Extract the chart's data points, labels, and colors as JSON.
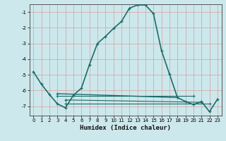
{
  "xlabel": "Humidex (Indice chaleur)",
  "bg_color": "#cce8ec",
  "grid_color": "#b8d8dc",
  "line_color": "#1a6e6a",
  "xlim": [
    -0.5,
    23.5
  ],
  "ylim": [
    -7.6,
    -0.5
  ],
  "yticks": [
    -7,
    -6,
    -5,
    -4,
    -3,
    -2,
    -1
  ],
  "xticks": [
    0,
    1,
    2,
    3,
    4,
    5,
    6,
    7,
    8,
    9,
    10,
    11,
    12,
    13,
    14,
    15,
    16,
    17,
    18,
    19,
    20,
    21,
    22,
    23
  ],
  "main_line_x": [
    0,
    1,
    2,
    3,
    4,
    5,
    6,
    7,
    8,
    9,
    10,
    11,
    12,
    13,
    14,
    15,
    16,
    17,
    18,
    19,
    20,
    21,
    22,
    23
  ],
  "main_line_y": [
    -4.8,
    -5.6,
    -6.25,
    -6.85,
    -7.1,
    -6.3,
    -5.85,
    -4.35,
    -3.0,
    -2.55,
    -2.05,
    -1.6,
    -0.75,
    -0.55,
    -0.55,
    -1.1,
    -3.45,
    -4.95,
    -6.45,
    -6.7,
    -6.9,
    -6.7,
    -7.35,
    -6.55
  ],
  "flat_lines": [
    {
      "x": [
        3,
        18
      ],
      "y": [
        -6.2,
        -6.45
      ],
      "lw": 1.0
    },
    {
      "x": [
        3,
        20
      ],
      "y": [
        -6.35,
        -6.35
      ],
      "lw": 0.8
    },
    {
      "x": [
        4,
        21
      ],
      "y": [
        -6.6,
        -6.75
      ],
      "lw": 0.8
    },
    {
      "x": [
        4,
        22
      ],
      "y": [
        -6.85,
        -6.85
      ],
      "lw": 0.8
    }
  ]
}
